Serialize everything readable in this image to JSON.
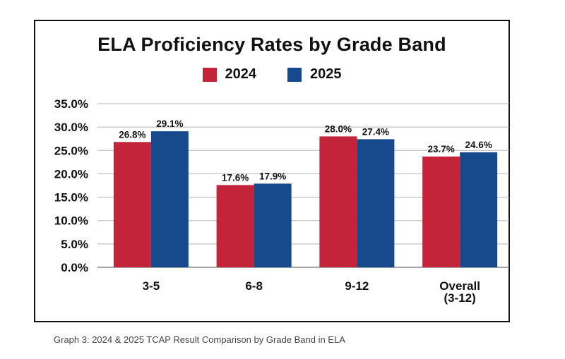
{
  "chart_data": {
    "type": "bar",
    "title": "ELA Proficiency Rates by Grade Band",
    "categories": [
      "3-5",
      "6-8",
      "9-12",
      "Overall (3-12)"
    ],
    "series": [
      {
        "name": "2024",
        "color": "#c4243a",
        "values": [
          26.8,
          17.6,
          28.0,
          23.7
        ],
        "labels": [
          "26.8%",
          "17.6%",
          "28.0%",
          "23.7%"
        ]
      },
      {
        "name": "2025",
        "color": "#174a8c",
        "values": [
          29.1,
          17.9,
          27.4,
          24.6
        ],
        "labels": [
          "29.1%",
          "17.9%",
          "27.4%",
          "24.6%"
        ]
      }
    ],
    "ylim": [
      0,
      35
    ],
    "yticks": [
      "0.0%",
      "5.0%",
      "10.0%",
      "15.0%",
      "20.0%",
      "25.0%",
      "30.0%",
      "35.0%"
    ],
    "grid": true,
    "legend_position": "top"
  },
  "caption": "Graph 3: 2024 & 2025 TCAP Result Comparison by Grade Band in ELA"
}
